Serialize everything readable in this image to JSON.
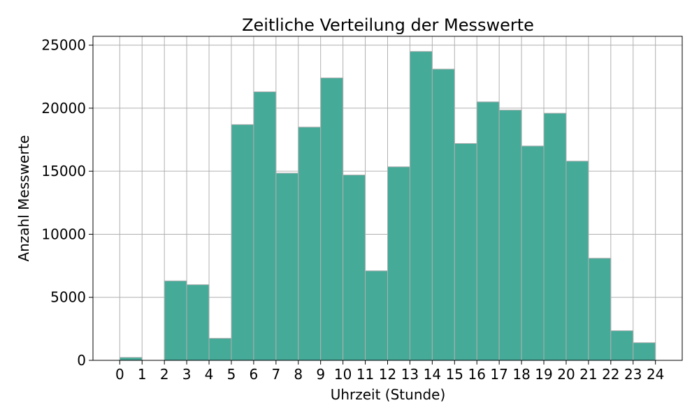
{
  "chart_data": {
    "type": "bar",
    "title": "Zeitliche Verteilung der Messwerte",
    "xlabel": "Uhrzeit (Stunde)",
    "ylabel": "Anzahl Messwerte",
    "bin_edges": [
      0,
      1,
      2,
      3,
      4,
      5,
      6,
      7,
      8,
      9,
      10,
      11,
      12,
      13,
      14,
      15,
      16,
      17,
      18,
      19,
      20,
      21,
      22,
      23,
      24
    ],
    "values": [
      230,
      0,
      6300,
      6000,
      1750,
      18700,
      21300,
      14850,
      18500,
      22400,
      14700,
      7100,
      15350,
      24500,
      23100,
      17200,
      20500,
      19850,
      17000,
      19600,
      15800,
      8100,
      2350,
      1400
    ],
    "x_ticks": [
      "0",
      "1",
      "2",
      "3",
      "4",
      "5",
      "6",
      "7",
      "8",
      "9",
      "10",
      "11",
      "12",
      "13",
      "14",
      "15",
      "16",
      "17",
      "18",
      "19",
      "20",
      "21",
      "22",
      "23",
      "24"
    ],
    "y_ticks": [
      "0",
      "5000",
      "10000",
      "15000",
      "20000",
      "25000"
    ],
    "xlim": [
      -1.2,
      25.2
    ],
    "ylim": [
      0,
      25700
    ],
    "grid": true,
    "bar_color": "#45aa98",
    "grid_color": "#b0b0b0"
  }
}
